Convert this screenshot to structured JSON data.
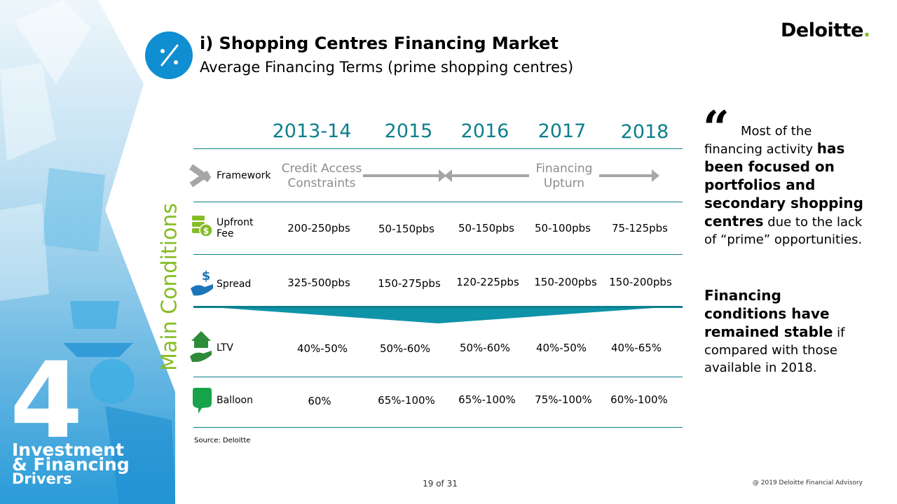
{
  "section": {
    "number": "4",
    "lines": [
      "Investment",
      "& Financing",
      "Drivers"
    ]
  },
  "header": {
    "title": "i) Shopping Centres Financing Market",
    "subtitle": "Average Financing Terms (prime shopping centres)",
    "icon": "percent-icon",
    "logo_text": "Deloitte",
    "logo_dot": "."
  },
  "vertical_label": "Main Conditions",
  "years": [
    "2013-14",
    "2015",
    "2016",
    "2017",
    "2018"
  ],
  "framework": {
    "label": "Framework",
    "icon": "handshake-icon",
    "note_left": [
      "Credit Access",
      "Constraints"
    ],
    "note_right": [
      "Financing",
      "Upturn"
    ]
  },
  "rows": [
    {
      "label_lines": [
        "Upfront",
        "Fee"
      ],
      "icon": "coins-icon",
      "values": [
        "200-250pbs",
        "50-150pbs",
        "50-150pbs",
        "50-100pbs",
        "75-125pbs"
      ]
    },
    {
      "label_lines": [
        "Spread"
      ],
      "icon": "hand-dollar-icon",
      "values": [
        "325-500pbs",
        "150-275pbs",
        "120-225pbs",
        "150-200pbs",
        "150-200pbs"
      ]
    },
    {
      "label_lines": [
        "LTV"
      ],
      "icon": "house-hand-icon",
      "values": [
        "40%-50%",
        "50%-60%",
        "50%-60%",
        "40%-50%",
        "40%-65%"
      ]
    },
    {
      "label_lines": [
        "Balloon"
      ],
      "icon": "speech-bubble-icon",
      "values": [
        "60%",
        "65%-100%",
        "65%-100%",
        "75%-100%",
        "60%-100%"
      ]
    }
  ],
  "source": "Source: Deloitte",
  "page": "19 of 31",
  "copyright": "@ 2019 Deloitte Financial Advisory",
  "quote": {
    "mark": "“",
    "p1_a": "Most of the financing activity ",
    "p1_bold": "has been focused on portfolios and secondary shopping centres",
    "p1_c": " due to the lack of “prime” opportunities.",
    "p2_bold": "Financing conditions have remained stable",
    "p2_c": " if compared with those available in 2018."
  },
  "colors": {
    "teal": "#0c7f8c",
    "green": "#86bc25",
    "blue": "#0f8ed1",
    "grey": "#a6a6a6"
  }
}
